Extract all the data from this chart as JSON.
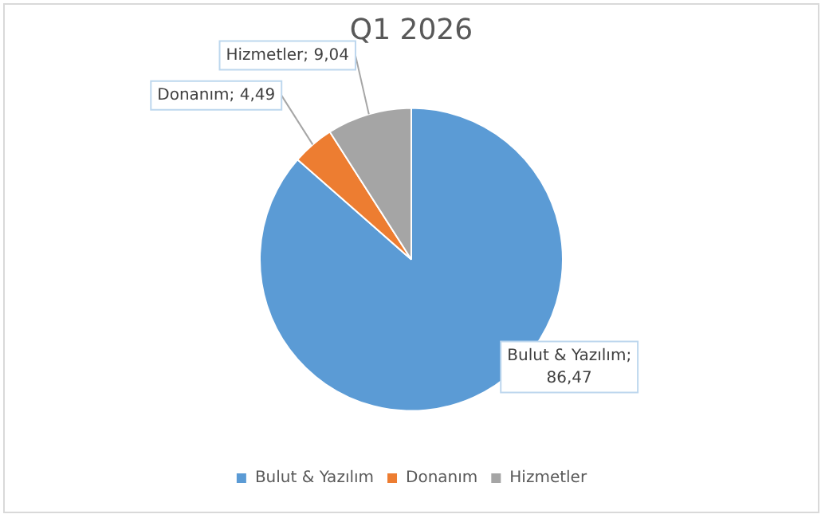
{
  "chart_data": {
    "type": "pie",
    "title": "Q1 2026",
    "categories": [
      "Bulut & Yazılım",
      "Donanım",
      "Hizmetler"
    ],
    "values": [
      86.47,
      4.49,
      9.04
    ],
    "colors": [
      "#5b9bd5",
      "#ed7d31",
      "#a5a5a5"
    ],
    "value_labels": [
      "Bulut & Yazılım; 86,47",
      "Donanım; 4,49",
      "Hizmetler; 9,04"
    ],
    "legend": "bottom"
  }
}
